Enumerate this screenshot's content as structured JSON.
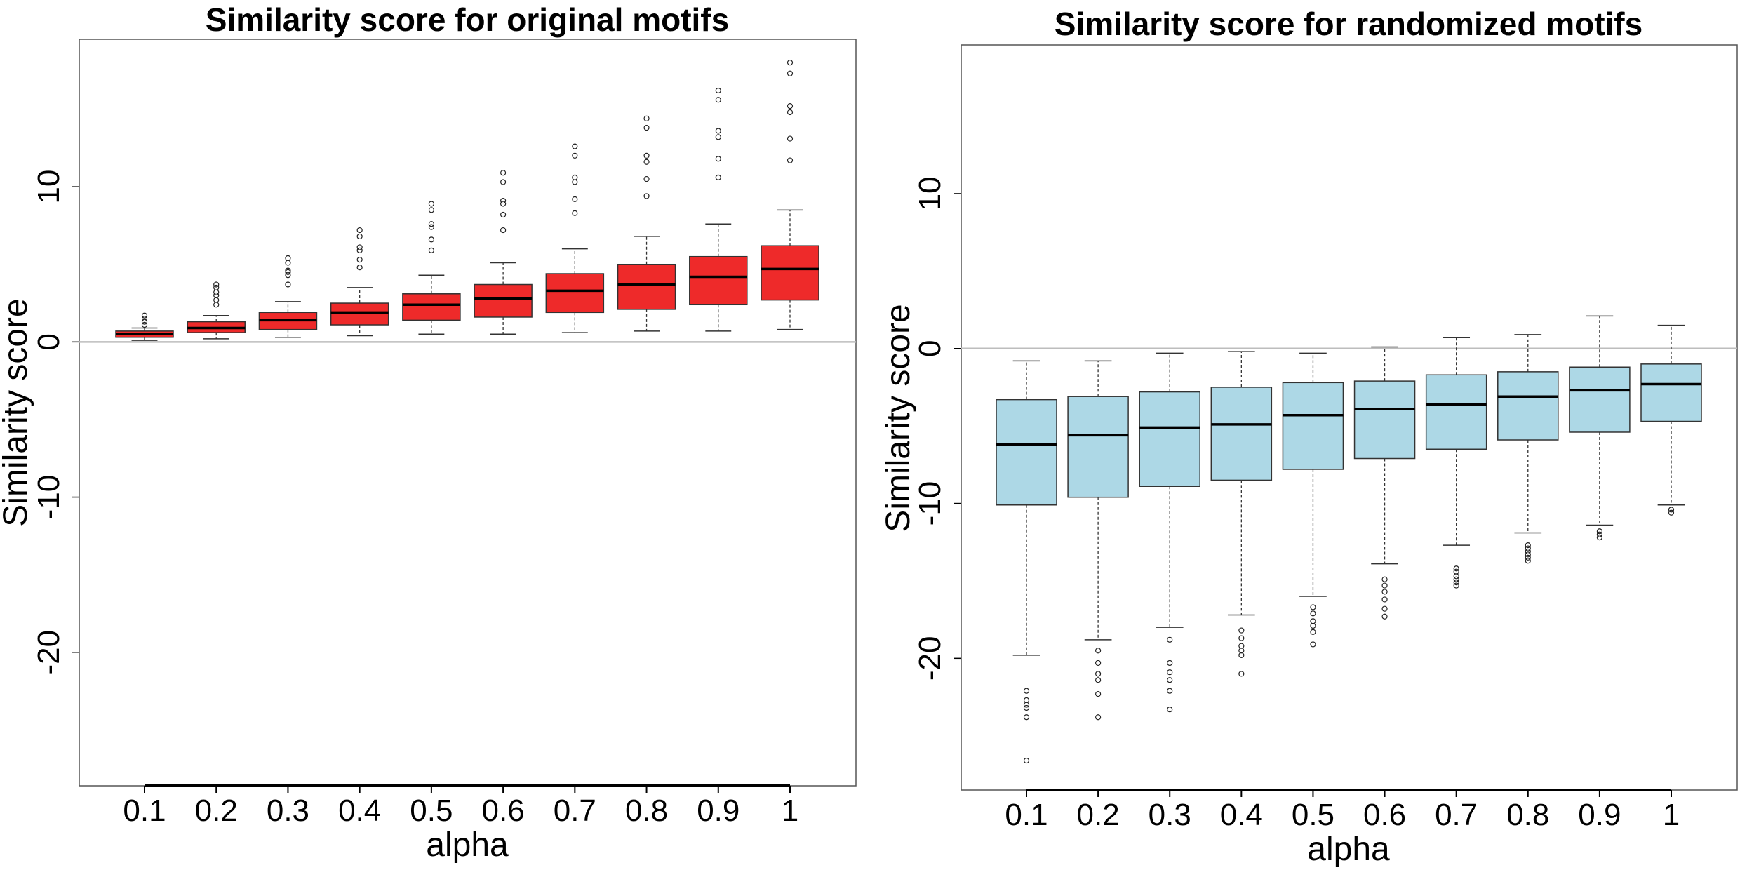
{
  "chart_data": [
    {
      "type": "box",
      "title": "Similarity score for original motifs",
      "xlabel": "alpha",
      "ylabel": "Similarity score",
      "categories": [
        "0.1",
        "0.2",
        "0.3",
        "0.4",
        "0.5",
        "0.6",
        "0.7",
        "0.8",
        "0.9",
        "1"
      ],
      "yticks": [
        "10",
        "0",
        "-10",
        "-20"
      ],
      "ylim": [
        -28.6,
        19.5
      ],
      "reference_line": 0,
      "box_color": "#ee2a2a",
      "boxes": [
        {
          "min": 0.1,
          "q1": 0.3,
          "median": 0.5,
          "q3": 0.7,
          "max": 0.9,
          "outliers": [
            1.1,
            1.3,
            1.5,
            1.7
          ]
        },
        {
          "min": 0.2,
          "q1": 0.6,
          "median": 0.9,
          "q3": 1.3,
          "max": 1.7,
          "outliers": [
            2.4,
            2.7,
            3.0,
            3.2,
            3.5,
            3.7
          ]
        },
        {
          "min": 0.3,
          "q1": 0.8,
          "median": 1.4,
          "q3": 1.9,
          "max": 2.6,
          "outliers": [
            3.7,
            4.3,
            4.5,
            4.6,
            5.1,
            5.4
          ]
        },
        {
          "min": 0.4,
          "q1": 1.1,
          "median": 1.9,
          "q3": 2.5,
          "max": 3.5,
          "outliers": [
            4.8,
            5.3,
            5.9,
            6.1,
            6.8,
            7.2
          ]
        },
        {
          "min": 0.5,
          "q1": 1.4,
          "median": 2.4,
          "q3": 3.1,
          "max": 4.3,
          "outliers": [
            5.9,
            6.6,
            7.4,
            7.6,
            8.5,
            8.9
          ]
        },
        {
          "min": 0.5,
          "q1": 1.6,
          "median": 2.8,
          "q3": 3.7,
          "max": 5.1,
          "outliers": [
            7.2,
            8.2,
            8.9,
            9.1,
            10.3,
            10.9
          ]
        },
        {
          "min": 0.6,
          "q1": 1.9,
          "median": 3.3,
          "q3": 4.4,
          "max": 6.0,
          "outliers": [
            8.3,
            9.2,
            10.3,
            10.6,
            12.0,
            12.6
          ]
        },
        {
          "min": 0.7,
          "q1": 2.1,
          "median": 3.7,
          "q3": 5.0,
          "max": 6.8,
          "outliers": [
            9.4,
            10.5,
            11.6,
            12.0,
            13.8,
            14.4
          ]
        },
        {
          "min": 0.7,
          "q1": 2.4,
          "median": 4.2,
          "q3": 5.5,
          "max": 7.6,
          "outliers": [
            10.6,
            11.8,
            13.2,
            13.6,
            15.6,
            16.2
          ]
        },
        {
          "min": 0.8,
          "q1": 2.7,
          "median": 4.7,
          "q3": 6.2,
          "max": 8.5,
          "outliers": [
            11.7,
            13.1,
            14.8,
            15.2,
            17.3,
            18.0
          ]
        }
      ]
    },
    {
      "type": "box",
      "title": "Similarity score for randomized motifs",
      "xlabel": "alpha",
      "ylabel": "Similarity score",
      "categories": [
        "0.1",
        "0.2",
        "0.3",
        "0.4",
        "0.5",
        "0.6",
        "0.7",
        "0.8",
        "0.9",
        "1"
      ],
      "yticks": [
        "10",
        "0",
        "-10",
        "-20"
      ],
      "ylim": [
        -28.5,
        19.6
      ],
      "reference_line": 0,
      "box_color": "#add8e6",
      "boxes": [
        {
          "min": -19.8,
          "q1": -10.1,
          "median": -6.2,
          "q3": -3.3,
          "max": -0.8,
          "outliers": [
            -22.1,
            -22.7,
            -23.0,
            -23.2,
            -23.8,
            -26.6
          ]
        },
        {
          "min": -18.8,
          "q1": -9.6,
          "median": -5.6,
          "q3": -3.1,
          "max": -0.8,
          "outliers": [
            -19.5,
            -20.3,
            -21.0,
            -21.4,
            -22.3,
            -23.8
          ]
        },
        {
          "min": -18.0,
          "q1": -8.9,
          "median": -5.1,
          "q3": -2.8,
          "max": -0.3,
          "outliers": [
            -18.8,
            -20.3,
            -20.9,
            -21.4,
            -22.1,
            -23.3
          ]
        },
        {
          "min": -17.2,
          "q1": -8.5,
          "median": -4.9,
          "q3": -2.5,
          "max": -0.2,
          "outliers": [
            -18.2,
            -18.7,
            -19.2,
            -19.5,
            -19.8,
            -21.0
          ]
        },
        {
          "min": -16.0,
          "q1": -7.8,
          "median": -4.3,
          "q3": -2.2,
          "max": -0.3,
          "outliers": [
            -16.7,
            -17.1,
            -17.6,
            -17.9,
            -18.3,
            -19.1
          ]
        },
        {
          "min": -13.9,
          "q1": -7.1,
          "median": -3.9,
          "q3": -2.1,
          "max": 0.1,
          "outliers": [
            -14.9,
            -15.3,
            -15.7,
            -16.2,
            -16.8,
            -17.3
          ]
        },
        {
          "min": -12.7,
          "q1": -6.5,
          "median": -3.6,
          "q3": -1.7,
          "max": 0.7,
          "outliers": [
            -14.2,
            -14.4,
            -14.7,
            -14.9,
            -15.1,
            -15.3
          ]
        },
        {
          "min": -11.9,
          "q1": -5.9,
          "median": -3.1,
          "q3": -1.5,
          "max": 0.9,
          "outliers": [
            -12.7,
            -12.9,
            -13.1,
            -13.3,
            -13.5,
            -13.7
          ]
        },
        {
          "min": -11.4,
          "q1": -5.4,
          "median": -2.7,
          "q3": -1.2,
          "max": 2.1,
          "outliers": [
            -11.8,
            -12.0,
            -12.2
          ]
        },
        {
          "min": -10.1,
          "q1": -4.7,
          "median": -2.3,
          "q3": -1.0,
          "max": 1.5,
          "outliers": [
            -10.4,
            -10.6
          ]
        }
      ]
    }
  ]
}
